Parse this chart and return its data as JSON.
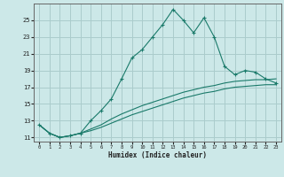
{
  "xlabel": "Humidex (Indice chaleur)",
  "bg_color": "#cce8e8",
  "grid_color": "#aacccc",
  "line_color": "#1a7a6a",
  "x": [
    0,
    1,
    2,
    3,
    4,
    5,
    6,
    7,
    8,
    9,
    10,
    11,
    12,
    13,
    14,
    15,
    16,
    17,
    18,
    19,
    20,
    21,
    22,
    23
  ],
  "y_upper": [
    12.5,
    11.5,
    11.0,
    11.2,
    11.5,
    13.0,
    14.2,
    15.6,
    18.0,
    20.5,
    21.5,
    23.0,
    24.5,
    26.3,
    25.0,
    23.5,
    25.3,
    23.0,
    19.5,
    18.5,
    19.0,
    18.8,
    18.0,
    17.5
  ],
  "y_lower": [
    12.5,
    11.5,
    11.0,
    11.2,
    11.5,
    12.0,
    12.5,
    13.2,
    13.8,
    14.3,
    14.8,
    15.2,
    15.6,
    16.0,
    16.4,
    16.7,
    17.0,
    17.2,
    17.5,
    17.7,
    17.8,
    17.9,
    17.9,
    18.0
  ],
  "y_lower2": [
    12.5,
    11.5,
    11.0,
    11.2,
    11.5,
    11.8,
    12.2,
    12.7,
    13.2,
    13.7,
    14.1,
    14.5,
    14.9,
    15.3,
    15.7,
    16.0,
    16.3,
    16.5,
    16.8,
    17.0,
    17.1,
    17.2,
    17.3,
    17.3
  ],
  "ylim": [
    10.5,
    27.0
  ],
  "xlim": [
    -0.5,
    23.5
  ],
  "yticks": [
    11,
    13,
    15,
    17,
    19,
    21,
    23,
    25
  ],
  "xticks": [
    0,
    1,
    2,
    3,
    4,
    5,
    6,
    7,
    8,
    9,
    10,
    11,
    12,
    13,
    14,
    15,
    16,
    17,
    18,
    19,
    20,
    21,
    22,
    23
  ]
}
